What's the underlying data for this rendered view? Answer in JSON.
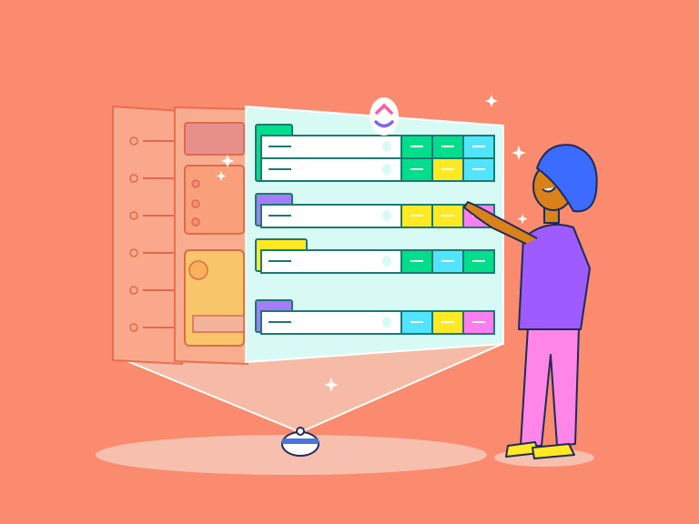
{
  "logo": {
    "name": "clickup-logo-icon",
    "text": "ClickUp"
  },
  "colors": {
    "background": "#FA8B6E",
    "floor": "#F7BFAE",
    "panel": "#D8FAF5",
    "outline": "#1B7A70",
    "green": "#00DE8C",
    "yellow": "#FFE923",
    "cyan": "#52E4FF",
    "pink": "#FF7EEF",
    "purple": "#A47CFF",
    "back_panel": "#F9A489",
    "mid_panel": "#F7A98C"
  },
  "board": {
    "groups": [
      {
        "tab": "green",
        "rows": [
          [
            "green",
            "green",
            "cyan"
          ],
          [
            "green",
            "yellow",
            "cyan"
          ]
        ]
      },
      {
        "tab": "purple",
        "rows": [
          [
            "yellow",
            "yellow",
            "pink"
          ]
        ]
      },
      {
        "tab": "yellow",
        "rows": [
          [
            "green",
            "cyan",
            "green"
          ]
        ]
      },
      {
        "tab": "purple",
        "rows": [
          [
            "cyan",
            "yellow",
            "pink"
          ]
        ]
      }
    ]
  }
}
